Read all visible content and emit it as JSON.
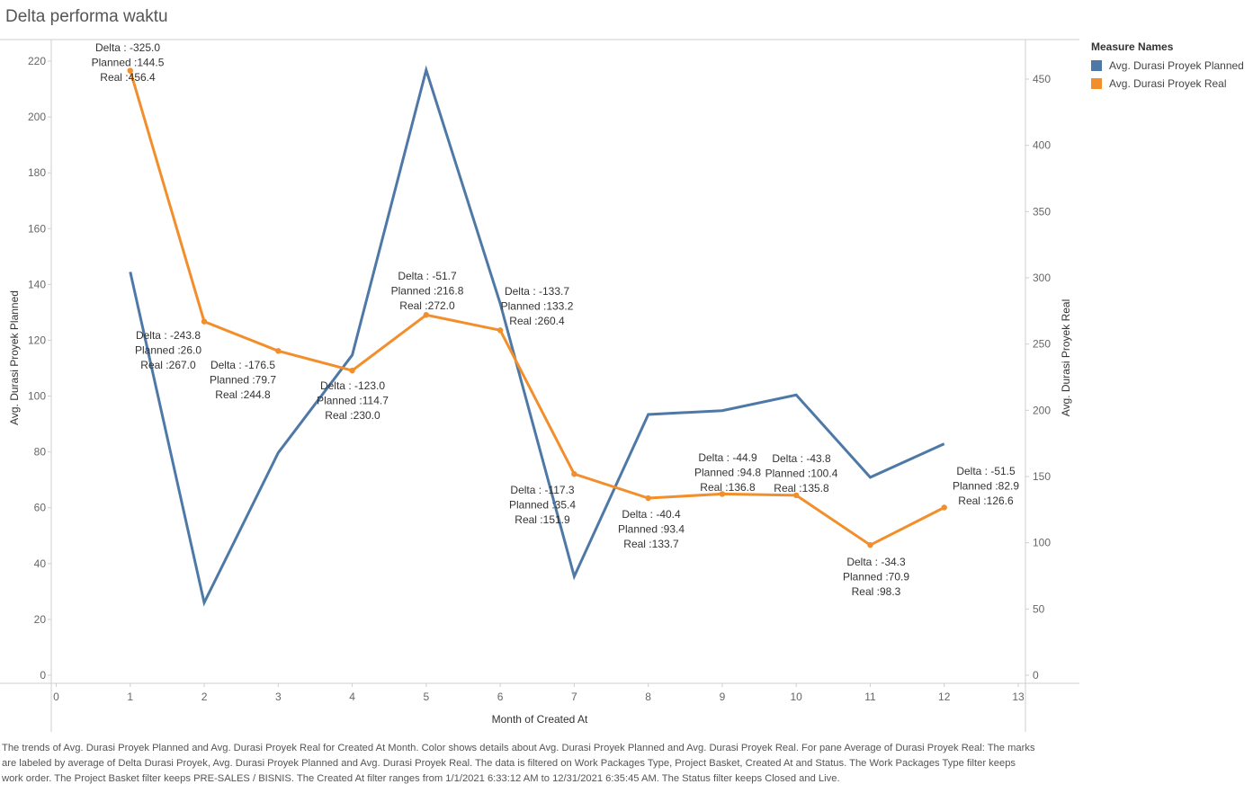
{
  "title": "Delta performa waktu",
  "legend": {
    "title": "Measure Names",
    "items": [
      {
        "label": "Avg. Durasi Proyek Planned",
        "color": "#4e79a7"
      },
      {
        "label": "Avg. Durasi Proyek Real",
        "color": "#f28e2b"
      }
    ]
  },
  "caption": "The trends of Avg. Durasi Proyek Planned and Avg. Durasi Proyek Real for Created At Month.  Color shows details about Avg. Durasi Proyek Planned and Avg. Durasi Proyek Real.  For pane Average of Durasi Proyek Real:  The marks are labeled by average of Delta Durasi Proyek, Avg. Durasi Proyek Planned and Avg. Durasi Proyek Real. The data is filtered on Work Packages Type, Project Basket, Created At and Status. The Work Packages Type filter keeps work order. The Project Basket filter keeps PRE-SALES / BISNIS. The Created At filter ranges from 1/1/2021 6:33:12 AM to 12/31/2021 6:35:45 AM. The Status filter keeps Closed and Live.",
  "chart_data": {
    "type": "line",
    "xlabel": "Month of Created At",
    "ylabel_left": "Avg. Durasi Proyek Planned",
    "ylabel_right": "Avg. Durasi Proyek Real",
    "xlim": [
      0,
      13
    ],
    "ylim_left": [
      0,
      220
    ],
    "ylim_right": [
      0,
      450
    ],
    "x_ticks": [
      0,
      1,
      2,
      3,
      4,
      5,
      6,
      7,
      8,
      9,
      10,
      11,
      12,
      13
    ],
    "y_ticks_left": [
      0,
      20,
      40,
      60,
      80,
      100,
      120,
      140,
      160,
      180,
      200,
      220
    ],
    "y_ticks_right": [
      0,
      50,
      100,
      150,
      200,
      250,
      300,
      350,
      400,
      450
    ],
    "grid": false,
    "legend_position": "right",
    "x": [
      1,
      2,
      3,
      4,
      5,
      6,
      7,
      8,
      9,
      10,
      11,
      12
    ],
    "series": [
      {
        "name": "Avg. Durasi Proyek Planned",
        "axis": "left",
        "color": "#4e79a7",
        "values": [
          144.5,
          26.0,
          79.7,
          114.7,
          216.8,
          133.2,
          35.4,
          93.4,
          94.8,
          100.4,
          70.9,
          82.9
        ]
      },
      {
        "name": "Avg. Durasi Proyek Real",
        "axis": "right",
        "color": "#f28e2b",
        "values": [
          456.4,
          267.0,
          244.8,
          230.0,
          272.0,
          260.4,
          151.9,
          133.7,
          136.8,
          135.8,
          98.3,
          126.6
        ]
      }
    ],
    "annotations": [
      {
        "x": 1,
        "lines": [
          "Delta : -325.0",
          "Planned :144.5",
          "Real :456.4"
        ]
      },
      {
        "x": 2,
        "lines": [
          "Delta : -243.8",
          "Planned :26.0",
          "Real :267.0"
        ]
      },
      {
        "x": 3,
        "lines": [
          "Delta : -176.5",
          "Planned :79.7",
          "Real :244.8"
        ]
      },
      {
        "x": 4,
        "lines": [
          "Delta : -123.0",
          "Planned :114.7",
          "Real :230.0"
        ]
      },
      {
        "x": 5,
        "lines": [
          "Delta : -51.7",
          "Planned :216.8",
          "Real :272.0"
        ]
      },
      {
        "x": 6,
        "lines": [
          "Delta : -133.7",
          "Planned :133.2",
          "Real :260.4"
        ]
      },
      {
        "x": 7,
        "lines": [
          "Delta : -117.3",
          "Planned :35.4",
          "Real :151.9"
        ]
      },
      {
        "x": 8,
        "lines": [
          "Delta : -40.4",
          "Planned :93.4",
          "Real :133.7"
        ]
      },
      {
        "x": 9,
        "lines": [
          "Delta : -44.9",
          "Planned :94.8",
          "Real :136.8"
        ]
      },
      {
        "x": 10,
        "lines": [
          "Delta : -43.8",
          "Planned :100.4",
          "Real :135.8"
        ]
      },
      {
        "x": 11,
        "lines": [
          "Delta : -34.3",
          "Planned :70.9",
          "Real :98.3"
        ]
      },
      {
        "x": 12,
        "lines": [
          "Delta : -51.5",
          "Planned :82.9",
          "Real :126.6"
        ]
      }
    ]
  }
}
